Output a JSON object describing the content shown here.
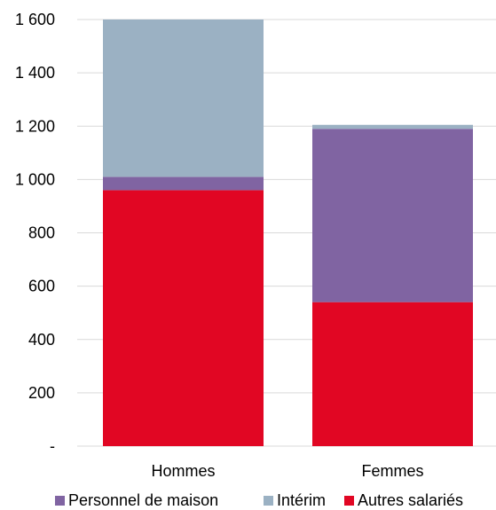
{
  "chart_data": {
    "type": "bar",
    "stacked": true,
    "categories": [
      "Hommes",
      "Femmes"
    ],
    "series": [
      {
        "name": "Autres salariés",
        "values": [
          960,
          540
        ],
        "color": "#e10623"
      },
      {
        "name": "Personnel de maison",
        "values": [
          50,
          650
        ],
        "color": "#8064a2"
      },
      {
        "name": "Intérim",
        "values": [
          590,
          15
        ],
        "color": "#9bb1c3"
      }
    ],
    "ylim": [
      0,
      1600
    ],
    "yticks": [
      0,
      200,
      400,
      600,
      800,
      1000,
      1200,
      1400,
      1600
    ],
    "ytick_labels": [
      "-",
      "200",
      "400",
      "600",
      "800",
      "1 000",
      "1 200",
      "1 400",
      "1 600"
    ],
    "legend_order": [
      "Personnel de maison",
      "Intérim",
      "Autres salariés"
    ],
    "legend_position": "bottom",
    "gridlines": "horizontal",
    "grid_color": "#d9d9d9",
    "title": "",
    "xlabel": "",
    "ylabel": ""
  }
}
